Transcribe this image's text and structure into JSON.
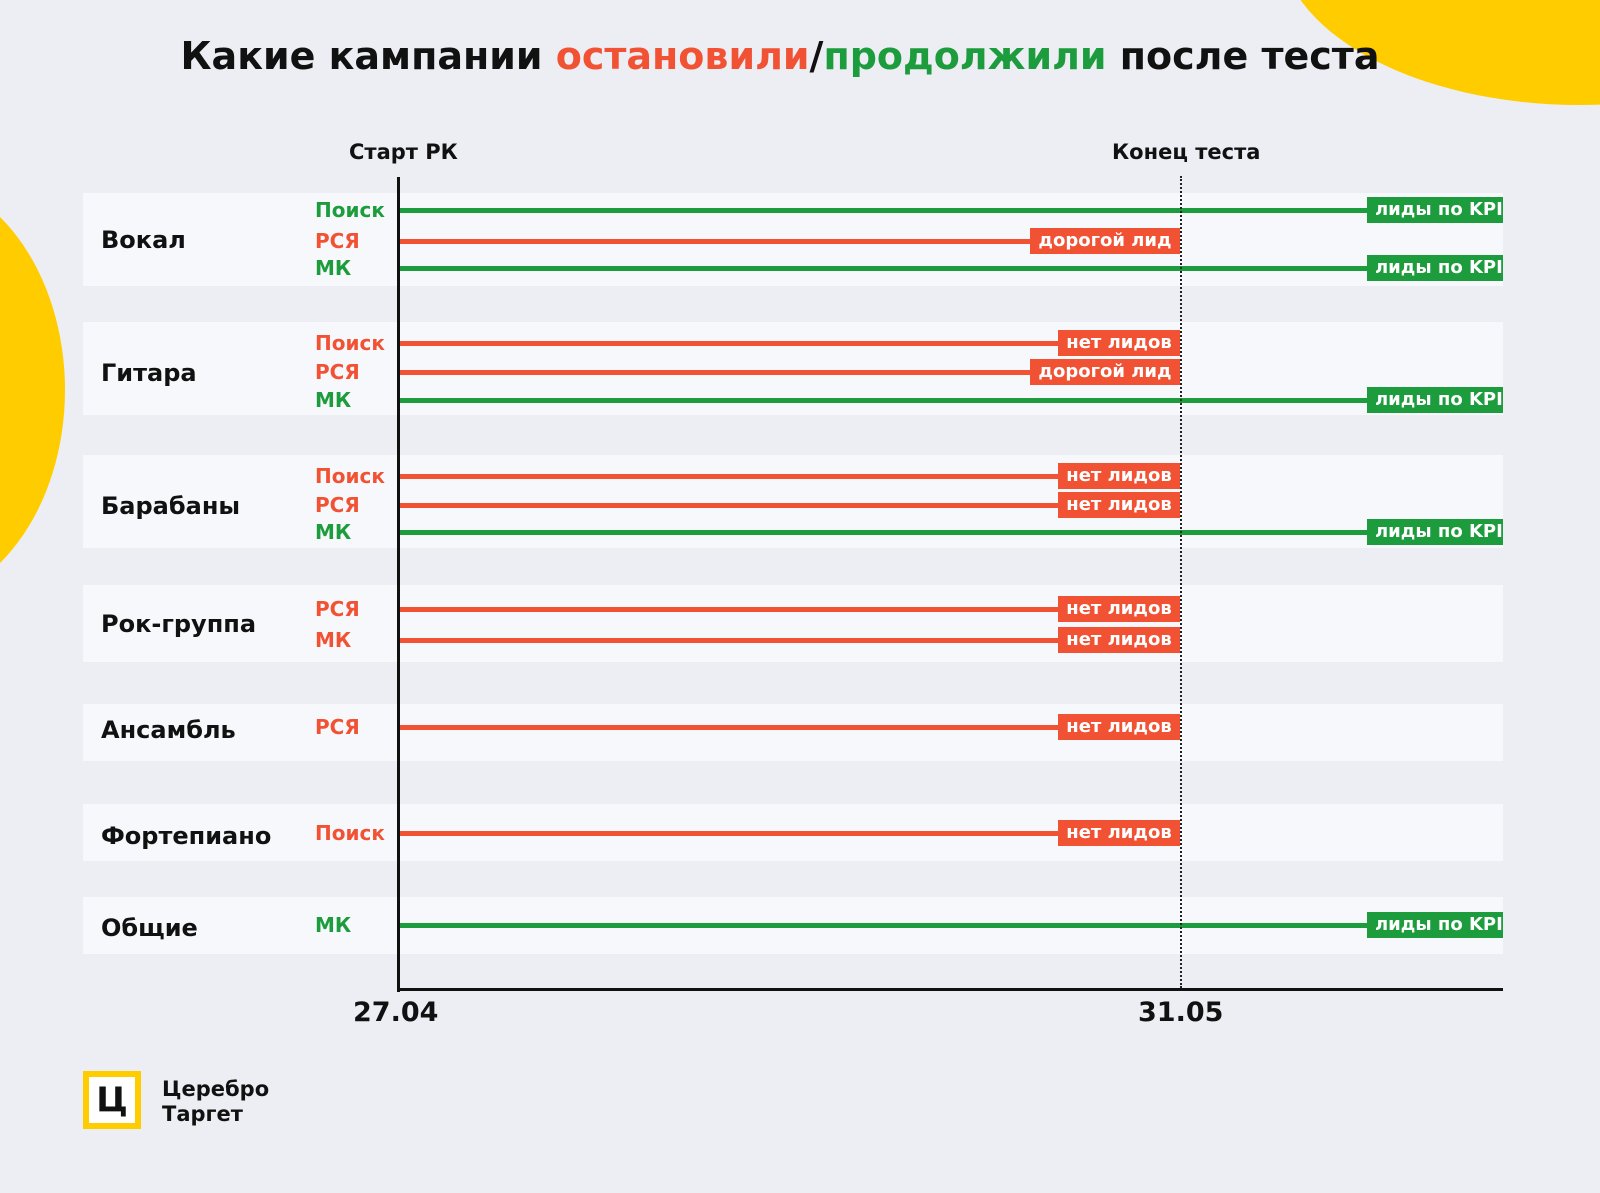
{
  "colors": {
    "stopped": "#f25234",
    "continued": "#1c9c3c",
    "accent": "#ffcc00",
    "background": "#eceef3"
  },
  "title": {
    "prefix": "Какие кампании ",
    "stopped_word": "остановили",
    "slash": "/",
    "continued_word": "продолжили",
    "suffix": " после теста"
  },
  "markers": {
    "start_label": "Старт РК",
    "end_label": "Конец теста"
  },
  "axis": {
    "start_date": "27.04",
    "end_date": "31.05"
  },
  "brand": {
    "logo_letter": "Ц",
    "line1": "Церебро",
    "line2": "Таргет"
  },
  "chart_data": {
    "type": "timeline",
    "groups": [
      {
        "name": "Вокал",
        "campaigns": [
          {
            "channel": "Поиск",
            "status": "continued",
            "result": "лиды по KPI"
          },
          {
            "channel": "РСЯ",
            "status": "stopped",
            "result": "дорогой лид"
          },
          {
            "channel": "МК",
            "status": "continued",
            "result": "лиды по KPI"
          }
        ]
      },
      {
        "name": "Гитара",
        "campaigns": [
          {
            "channel": "Поиск",
            "status": "stopped",
            "result": "нет лидов"
          },
          {
            "channel": "РСЯ",
            "status": "stopped",
            "result": "дорогой лид"
          },
          {
            "channel": "МК",
            "status": "continued",
            "result": "лиды по KPI"
          }
        ]
      },
      {
        "name": "Барабаны",
        "campaigns": [
          {
            "channel": "Поиск",
            "status": "stopped",
            "result": "нет лидов"
          },
          {
            "channel": "РСЯ",
            "status": "stopped",
            "result": "нет лидов"
          },
          {
            "channel": "МК",
            "status": "continued",
            "result": "лиды по KPI"
          }
        ]
      },
      {
        "name": "Рок-группа",
        "campaigns": [
          {
            "channel": "РСЯ",
            "status": "stopped",
            "result": "нет лидов"
          },
          {
            "channel": "МК",
            "status": "stopped",
            "result": "нет лидов"
          }
        ]
      },
      {
        "name": "Ансамбль",
        "campaigns": [
          {
            "channel": "РСЯ",
            "status": "stopped",
            "result": "нет лидов"
          }
        ]
      },
      {
        "name": "Фортепиано",
        "campaigns": [
          {
            "channel": "Поиск",
            "status": "stopped",
            "result": "нет лидов"
          }
        ]
      },
      {
        "name": "Общие",
        "campaigns": [
          {
            "channel": "МК",
            "status": "continued",
            "result": "лиды по KPI"
          }
        ]
      }
    ]
  }
}
